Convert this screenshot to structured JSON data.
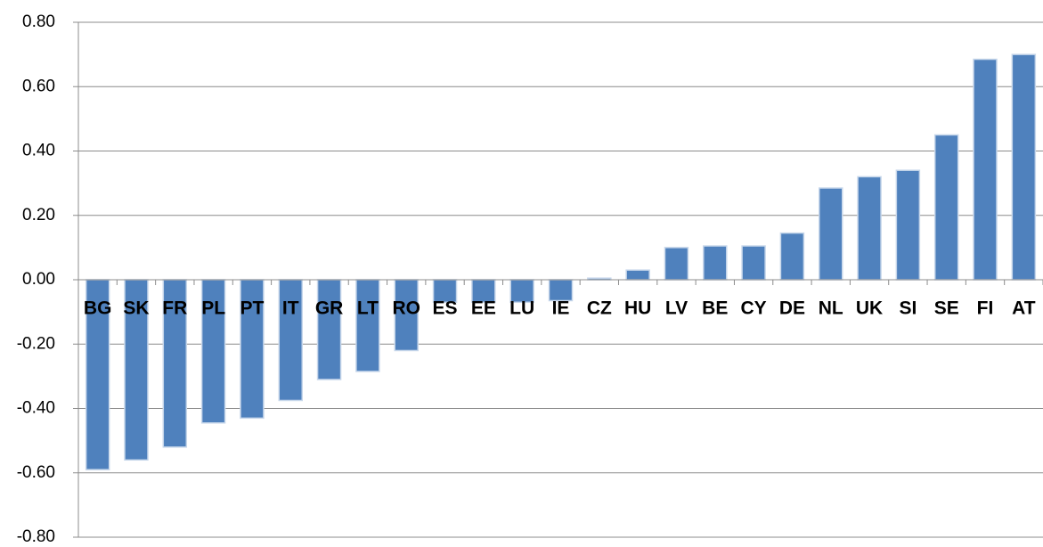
{
  "chart_data": {
    "type": "bar",
    "categories": [
      "BG",
      "SK",
      "FR",
      "PL",
      "PT",
      "IT",
      "GR",
      "LT",
      "RO",
      "ES",
      "EE",
      "LU",
      "IE",
      "CZ",
      "HU",
      "LV",
      "BE",
      "CY",
      "DE",
      "NL",
      "UK",
      "SI",
      "SE",
      "FI",
      "AT"
    ],
    "values": [
      -0.59,
      -0.56,
      -0.52,
      -0.445,
      -0.43,
      -0.375,
      -0.31,
      -0.285,
      -0.22,
      -0.07,
      -0.07,
      -0.07,
      -0.065,
      0.005,
      0.03,
      0.1,
      0.105,
      0.105,
      0.145,
      0.285,
      0.32,
      0.34,
      0.45,
      0.685,
      0.7
    ],
    "color": "#4f81bd",
    "ylim": [
      -0.8,
      0.8
    ],
    "yticks": [
      {
        "value": -0.8,
        "label": "-0.80"
      },
      {
        "value": -0.6,
        "label": "-0.60"
      },
      {
        "value": -0.4,
        "label": "-0.40"
      },
      {
        "value": -0.2,
        "label": "-0.20"
      },
      {
        "value": 0,
        "label": "0.00"
      },
      {
        "value": 0.2,
        "label": "0.20"
      },
      {
        "value": 0.4,
        "label": "0.40"
      },
      {
        "value": 0.6,
        "label": "0.60"
      },
      {
        "value": 0.8,
        "label": "0.80"
      }
    ],
    "grid": true
  }
}
